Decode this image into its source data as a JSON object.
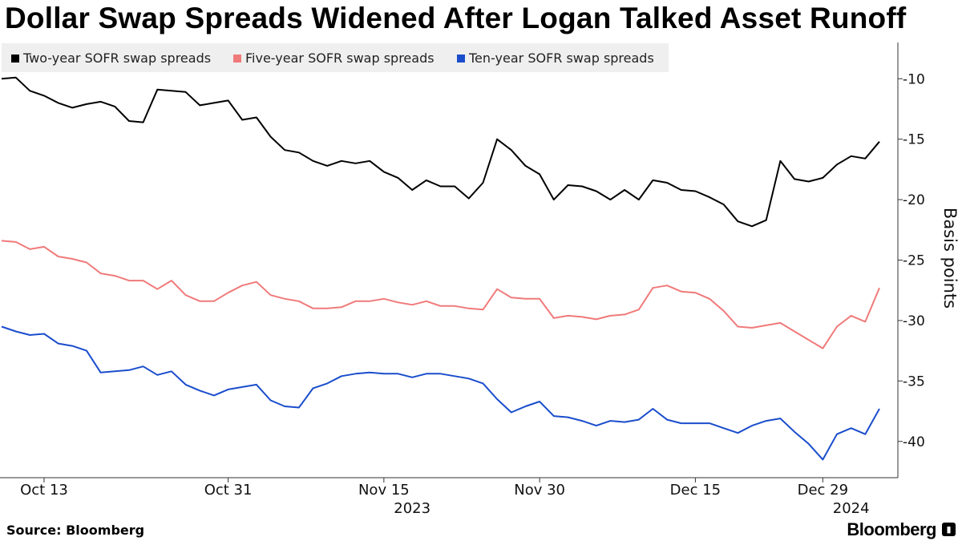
{
  "chart_data": {
    "type": "line",
    "title": "Dollar Swap Spreads Widened After Logan Talked Asset Runoff",
    "ylabel": "Basis points",
    "ylim": [
      -43,
      -7
    ],
    "yticks": [
      -10,
      -15,
      -20,
      -25,
      -30,
      -35,
      -40
    ],
    "x_tick_labels": [
      {
        "label": "Oct 13",
        "index": 3
      },
      {
        "label": "Oct 31",
        "index": 16
      },
      {
        "label": "Nov 15",
        "index": 27
      },
      {
        "label": "Nov 30",
        "index": 38
      },
      {
        "label": "Dec 15",
        "index": 49
      },
      {
        "label": "Dec 29",
        "index": 58
      }
    ],
    "year_labels": [
      {
        "label": "2023",
        "index": 29
      },
      {
        "label": "2024",
        "index": 60
      }
    ],
    "x_count": 63,
    "series": [
      {
        "name": "Two-year SOFR swap spreads",
        "color": "#000000",
        "values": [
          -10,
          -9.9,
          -11,
          -11.4,
          -12,
          -12.4,
          -12.1,
          -11.9,
          -12.3,
          -13.5,
          -13.6,
          -10.9,
          -11,
          -11.1,
          -12.2,
          -12,
          -11.8,
          -13.4,
          -13.2,
          -14.8,
          -15.9,
          -16.1,
          -16.8,
          -17.2,
          -16.8,
          -17,
          -16.8,
          -17.7,
          -18.2,
          -19.2,
          -18.4,
          -18.9,
          -18.9,
          -19.9,
          -18.6,
          -15,
          -15.9,
          -17.2,
          -17.9,
          -20,
          -18.8,
          -18.9,
          -19.3,
          -20,
          -19.2,
          -20,
          -18.4,
          -18.6,
          -19.2,
          -19.3,
          -19.8,
          -20.4,
          -21.8,
          -22.2,
          -21.7,
          -16.8,
          -18.3,
          -18.5,
          -18.2,
          -17.1,
          -16.4,
          -16.6,
          -15.2
        ]
      },
      {
        "name": "Five-year SOFR swap spreads",
        "color": "#f07a7a",
        "values": [
          -23.4,
          -23.5,
          -24.1,
          -23.9,
          -24.7,
          -24.9,
          -25.2,
          -26.1,
          -26.3,
          -26.7,
          -26.7,
          -27.4,
          -26.7,
          -27.9,
          -28.4,
          -28.4,
          -27.7,
          -27.1,
          -26.8,
          -27.9,
          -28.2,
          -28.4,
          -29,
          -29,
          -28.9,
          -28.4,
          -28.4,
          -28.2,
          -28.5,
          -28.7,
          -28.4,
          -28.8,
          -28.8,
          -29,
          -29.1,
          -27.4,
          -28.1,
          -28.2,
          -28.2,
          -29.8,
          -29.6,
          -29.7,
          -29.9,
          -29.6,
          -29.5,
          -29.1,
          -27.3,
          -27.1,
          -27.6,
          -27.7,
          -28.2,
          -29.2,
          -30.5,
          -30.6,
          -30.4,
          -30.2,
          -30.9,
          -31.6,
          -32.3,
          -30.5,
          -29.6,
          -30.1,
          -27.3
        ]
      },
      {
        "name": "Ten-year SOFR swap spreads",
        "color": "#1a4dcc",
        "values": [
          -30.5,
          -30.9,
          -31.2,
          -31.1,
          -31.9,
          -32.1,
          -32.5,
          -34.3,
          -34.2,
          -34.1,
          -33.8,
          -34.5,
          -34.2,
          -35.3,
          -35.8,
          -36.2,
          -35.7,
          -35.5,
          -35.3,
          -36.6,
          -37.1,
          -37.2,
          -35.6,
          -35.2,
          -34.6,
          -34.4,
          -34.3,
          -34.4,
          -34.4,
          -34.7,
          -34.4,
          -34.4,
          -34.6,
          -34.8,
          -35.2,
          -36.5,
          -37.6,
          -37.1,
          -36.7,
          -37.9,
          -38,
          -38.3,
          -38.7,
          -38.3,
          -38.4,
          -38.2,
          -37.3,
          -38.2,
          -38.5,
          -38.5,
          -38.5,
          -38.9,
          -39.3,
          -38.7,
          -38.3,
          -38.1,
          -39.2,
          -40.2,
          -41.5,
          -39.4,
          -38.9,
          -39.4,
          -37.3
        ]
      }
    ]
  },
  "footer": {
    "source": "Source: Bloomberg",
    "brand": "Bloomberg"
  }
}
